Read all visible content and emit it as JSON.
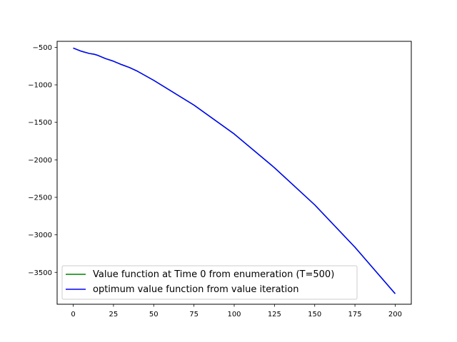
{
  "chart_data": {
    "type": "line",
    "title": "",
    "xlabel": "",
    "ylabel": "",
    "xlim": [
      -10,
      210
    ],
    "ylim": [
      -3925,
      -420
    ],
    "grid": false,
    "legend_position": "lower-left",
    "x_ticks": [
      0,
      25,
      50,
      75,
      100,
      125,
      150,
      175,
      200
    ],
    "y_ticks": [
      -500,
      -1000,
      -1500,
      -2000,
      -2500,
      -3000,
      -3500
    ],
    "x_tick_labels": [
      "0",
      "25",
      "50",
      "75",
      "100",
      "125",
      "150",
      "175",
      "200"
    ],
    "y_tick_labels": [
      "−500",
      "−1000",
      "−1500",
      "−2000",
      "−2500",
      "−3000",
      "−3500"
    ],
    "series": [
      {
        "name": "Value function at Time 0 from enumeration (T=500)",
        "color": "#008000",
        "x": [
          0,
          5,
          10,
          13,
          15,
          20,
          25,
          30,
          35,
          40,
          50,
          75,
          100,
          125,
          150,
          175,
          200
        ],
        "y": [
          -510,
          -552,
          -582,
          -592,
          -605,
          -650,
          -685,
          -730,
          -770,
          -820,
          -940,
          -1270,
          -1655,
          -2105,
          -2600,
          -3165,
          -3785
        ]
      },
      {
        "name": "optimum value function from value iteration",
        "color": "#0000ff",
        "x": [
          0,
          5,
          10,
          13,
          15,
          20,
          25,
          30,
          35,
          40,
          50,
          75,
          100,
          125,
          150,
          175,
          200
        ],
        "y": [
          -510,
          -552,
          -582,
          -592,
          -605,
          -650,
          -685,
          -730,
          -770,
          -820,
          -940,
          -1270,
          -1655,
          -2105,
          -2600,
          -3165,
          -3785
        ]
      }
    ]
  }
}
